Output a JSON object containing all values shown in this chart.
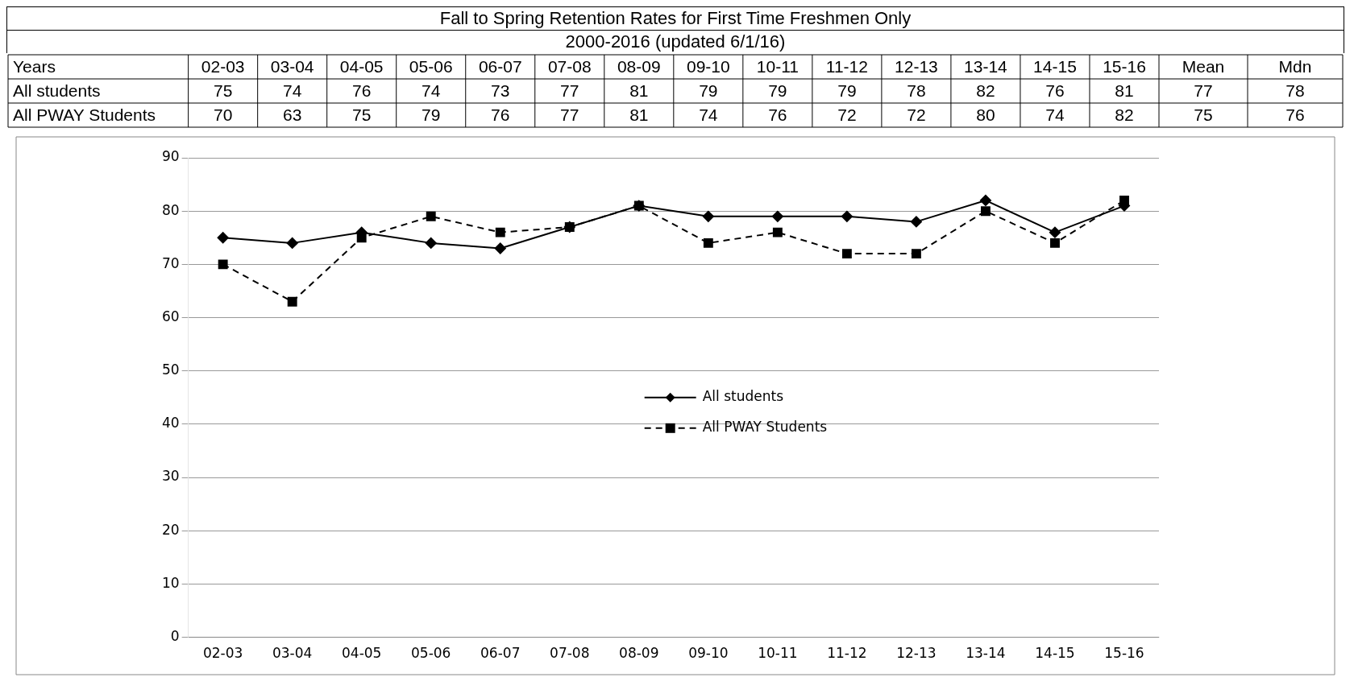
{
  "chart_data": {
    "type": "line",
    "title": "Fall to Spring Retention Rates for First Time Freshmen Only",
    "subtitle": "2000-2016 (updated 6/1/16)",
    "categories": [
      "02-03",
      "03-04",
      "04-05",
      "05-06",
      "06-07",
      "07-08",
      "08-09",
      "09-10",
      "10-11",
      "11-12",
      "12-13",
      "13-14",
      "14-15",
      "15-16"
    ],
    "series": [
      {
        "name": "All students",
        "color": "#000000",
        "marker": "diamond",
        "line_style": "solid",
        "values": [
          75,
          74,
          76,
          74,
          73,
          77,
          81,
          79,
          79,
          79,
          78,
          82,
          76,
          81
        ]
      },
      {
        "name": "All PWAY Students",
        "color": "#000000",
        "marker": "square",
        "line_style": "dashed",
        "values": [
          70,
          63,
          75,
          79,
          76,
          77,
          81,
          74,
          76,
          72,
          72,
          80,
          74,
          82
        ]
      }
    ],
    "annotations": [
      "Years",
      "Mean",
      "Mdn",
      "77",
      "78",
      "75",
      "76"
    ],
    "ylim": [
      0,
      90
    ],
    "yticks": [
      0,
      10,
      20,
      30,
      40,
      50,
      60,
      70,
      80,
      90
    ],
    "grid": "y",
    "legend": "center",
    "data_labels": true
  }
}
